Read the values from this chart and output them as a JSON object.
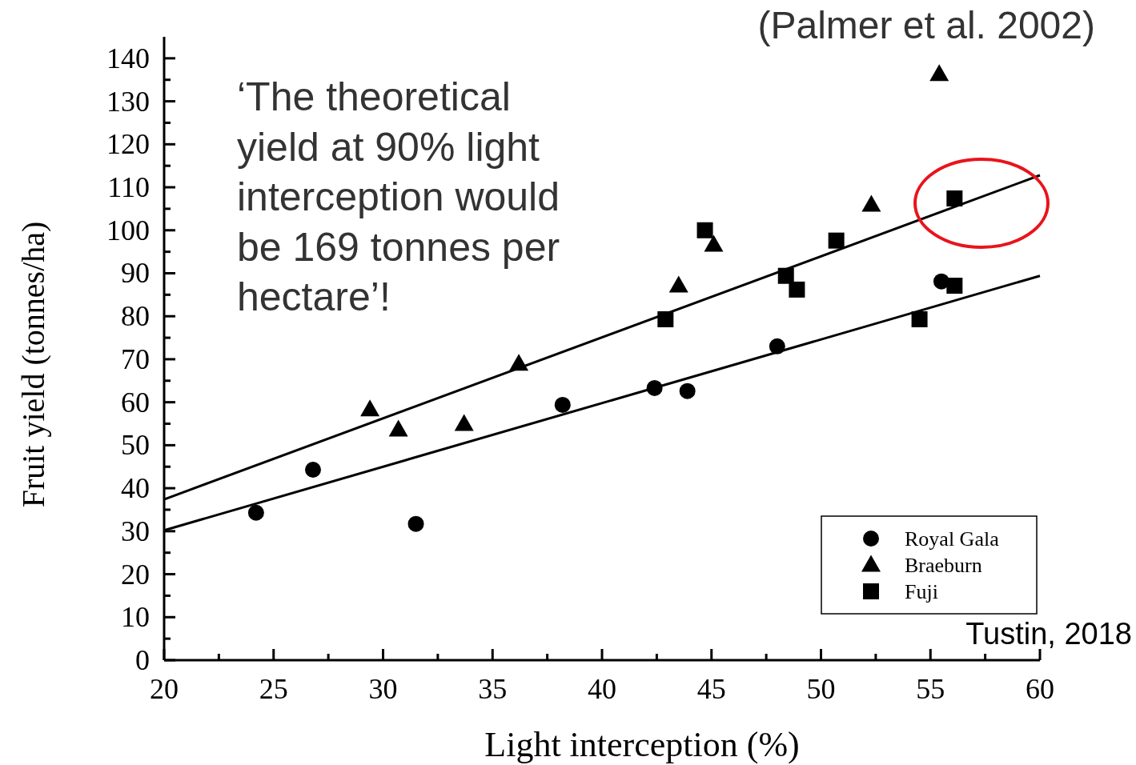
{
  "chart_data": {
    "type": "scatter",
    "xlabel": "Light interception (%)",
    "ylabel": "Fruit yield (tonnes/ha)",
    "xlim": [
      20,
      60
    ],
    "ylim": [
      0,
      145
    ],
    "xticks": [
      20,
      {
        "value": 22.5,
        "label": null
      },
      25,
      {
        "value": 27.5,
        "label": null
      },
      30,
      {
        "value": 32.5,
        "label": null
      },
      35,
      {
        "value": 37.5,
        "label": null
      },
      40,
      {
        "value": 42.5,
        "label": null
      },
      45,
      {
        "value": 47.5,
        "label": null
      },
      50,
      {
        "value": 52.5,
        "label": null
      },
      55,
      {
        "value": 57.5,
        "label": null
      },
      60
    ],
    "yticks": [
      0,
      {
        "value": 5,
        "label": null
      },
      10,
      {
        "value": 15,
        "label": null
      },
      20,
      {
        "value": 25,
        "label": null
      },
      30,
      {
        "value": 35,
        "label": null
      },
      40,
      {
        "value": 45,
        "label": null
      },
      50,
      {
        "value": 55,
        "label": null
      },
      60,
      {
        "value": 65,
        "label": null
      },
      70,
      {
        "value": 75,
        "label": null
      },
      80,
      {
        "value": 85,
        "label": null
      },
      90,
      {
        "value": 95,
        "label": null
      },
      100,
      {
        "value": 105,
        "label": null
      },
      110,
      {
        "value": 115,
        "label": null
      },
      120,
      {
        "value": 125,
        "label": null
      },
      130,
      {
        "value": 135,
        "label": null
      },
      140
    ],
    "grid": false,
    "legend": "bottom right",
    "series": [
      {
        "name": "Royal Gala",
        "color": "#000000",
        "marker": "circle",
        "x": [
          24.2,
          26.8,
          31.5,
          38.2,
          42.4,
          43.9,
          48.0,
          55.5
        ],
        "values": [
          34.3,
          44.3,
          31.7,
          59.4,
          63.3,
          62.6,
          73.0,
          88.1
        ]
      },
      {
        "name": "Braeburn",
        "color": "#000000",
        "marker": "triangle",
        "x": [
          29.4,
          30.7,
          33.7,
          36.2,
          43.5,
          45.1,
          52.3,
          55.4
        ],
        "values": [
          58.3,
          53.6,
          54.9,
          68.9,
          87.1,
          96.6,
          105.9,
          136.3
        ]
      },
      {
        "name": "Fuji",
        "color": "#000000",
        "marker": "square",
        "x": [
          42.9,
          44.7,
          48.4,
          48.9,
          50.7,
          54.5,
          56.1,
          56.1
        ],
        "values": [
          79.3,
          100.0,
          89.4,
          86.2,
          97.6,
          79.3,
          107.4,
          87.1
        ]
      },
      {
        "type": "line",
        "color": "#000000",
        "marker": "none",
        "x": [
          20,
          60
        ],
        "values": [
          37.4,
          112.8
        ]
      },
      {
        "type": "line",
        "color": "#000000",
        "marker": "none",
        "x": [
          20,
          60
        ],
        "values": [
          30.2,
          89.4
        ]
      }
    ],
    "annotations": [
      "(Palmer et al. 2002)",
      "‘The theoretical\nyield at 90% light\ninterception would\nbe 169 tonnes per\nhectare’!",
      "Tustin, 2018"
    ]
  }
}
